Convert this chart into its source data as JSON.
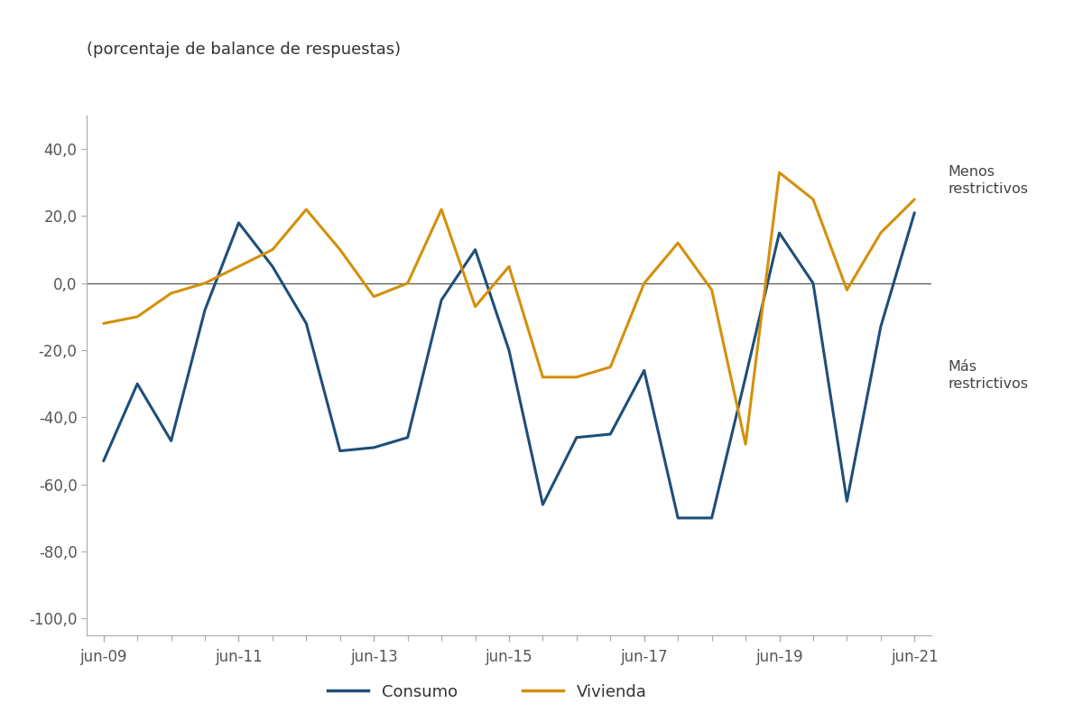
{
  "title": "(porcentaje de balance de respuestas)",
  "ylim": [
    -105,
    50
  ],
  "yticks": [
    -100,
    -80,
    -60,
    -40,
    -20,
    0,
    20,
    40
  ],
  "ytick_labels": [
    "-100,0",
    "-80,0",
    "-60,0",
    "-40,0",
    "-20,0",
    "0,0",
    "20,0",
    "40,0"
  ],
  "x_labels": [
    "jun-09",
    "jun-11",
    "jun-13",
    "jun-15",
    "jun-17",
    "jun-19",
    "jun-21"
  ],
  "consumo_color": "#1f4e79",
  "vivienda_color": "#d4900a",
  "background_color": "#ffffff",
  "annotation_menos": "Menos\nrestrictivos",
  "annotation_mas": "Más\nrestrictivos",
  "legend_consumo": "Consumo",
  "legend_vivienda": "Vivienda",
  "dates": [
    "jun-09",
    "dic-09",
    "jun-10",
    "dic-10",
    "jun-11",
    "dic-11",
    "jun-12",
    "dic-12",
    "jun-13",
    "dic-13",
    "jun-14",
    "dic-14",
    "jun-15",
    "dic-15",
    "jun-16",
    "dic-16",
    "jun-17",
    "dic-17",
    "jun-18",
    "dic-18",
    "jun-19",
    "dic-19",
    "jun-20",
    "dic-20",
    "jun-21"
  ],
  "consumo": [
    -53,
    -30,
    -47,
    -8,
    18,
    5,
    -12,
    -50,
    -49,
    -46,
    -5,
    10,
    -20,
    -66,
    -46,
    -45,
    -26,
    -70,
    -70,
    -28,
    15,
    0,
    -65,
    -13,
    21
  ],
  "vivienda": [
    -12,
    -10,
    -3,
    0,
    5,
    10,
    22,
    10,
    -4,
    0,
    22,
    -7,
    5,
    -28,
    -28,
    -25,
    0,
    12,
    -2,
    -48,
    33,
    25,
    -2,
    15,
    25
  ]
}
